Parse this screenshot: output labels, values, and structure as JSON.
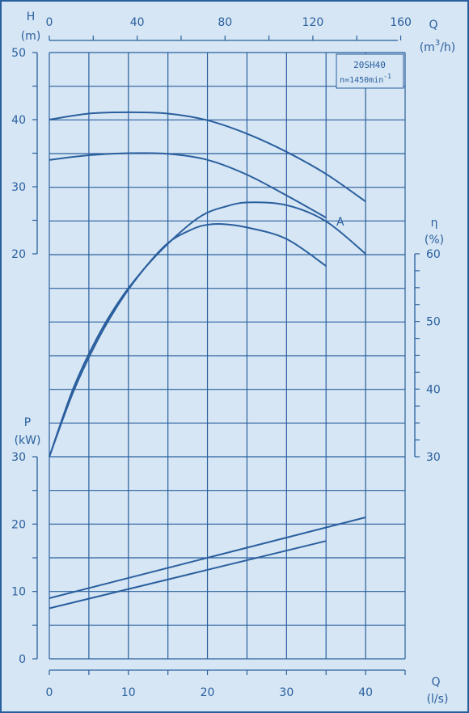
{
  "chart_data": {
    "type": "line",
    "model_label": "20SH40",
    "speed_label": "n=1450min",
    "speed_exp": "-1",
    "curve_label": "A",
    "axes": {
      "x_bottom": {
        "quantity": "Q",
        "unit": "(l/s)",
        "range": [
          0,
          45
        ],
        "ticks": [
          "0",
          "10",
          "20",
          "30",
          "40"
        ]
      },
      "x_top": {
        "quantity": "Q",
        "unit_pre": "(m",
        "unit_sup": "3",
        "unit_post": "/h)",
        "range": [
          0,
          162
        ],
        "ticks": [
          "0",
          "40",
          "80",
          "120",
          "160"
        ]
      },
      "y_head": {
        "quantity": "H",
        "unit": "(m)",
        "range": [
          20,
          50
        ],
        "ticks": [
          "20",
          "30",
          "40",
          "50"
        ]
      },
      "y_eff": {
        "quantity": "η",
        "unit": "(%)",
        "range": [
          30,
          60
        ],
        "ticks": [
          "30",
          "40",
          "50",
          "60"
        ]
      },
      "y_power": {
        "quantity": "P",
        "unit": "(kW)",
        "range": [
          0,
          30
        ],
        "ticks": [
          "0",
          "10",
          "20",
          "30"
        ]
      }
    },
    "grid": true,
    "series": [
      {
        "axis": "head",
        "x": [
          0,
          5,
          10,
          15,
          20,
          25,
          30,
          35,
          40
        ],
        "y": [
          40.0,
          40.9,
          41.1,
          40.9,
          39.9,
          37.9,
          35.2,
          31.9,
          27.8
        ]
      },
      {
        "axis": "head",
        "x": [
          0,
          5,
          10,
          15,
          20,
          25,
          30,
          35
        ],
        "y": [
          34.0,
          34.7,
          35.0,
          34.9,
          34.0,
          31.8,
          28.7,
          25.4
        ]
      },
      {
        "axis": "eff",
        "x": [
          0,
          3,
          6,
          9,
          12,
          15,
          18,
          20,
          22,
          25,
          30,
          35,
          40
        ],
        "y": [
          30.0,
          40.0,
          47.5,
          53.3,
          57.8,
          61.5,
          64.6,
          66.1,
          66.9,
          67.6,
          67.2,
          64.8,
          60.0
        ]
      },
      {
        "axis": "eff",
        "x": [
          0,
          3,
          6,
          9,
          12,
          15,
          18,
          20,
          22,
          25,
          30,
          35
        ],
        "y": [
          30.0,
          39.5,
          47.0,
          53.0,
          57.8,
          61.6,
          63.6,
          64.3,
          64.4,
          63.9,
          62.2,
          58.2
        ]
      },
      {
        "axis": "power",
        "x": [
          0,
          40
        ],
        "y": [
          9.0,
          21.0
        ]
      },
      {
        "axis": "power",
        "x": [
          0,
          35
        ],
        "y": [
          7.5,
          17.5
        ]
      }
    ],
    "annotation_series_index": 1
  }
}
